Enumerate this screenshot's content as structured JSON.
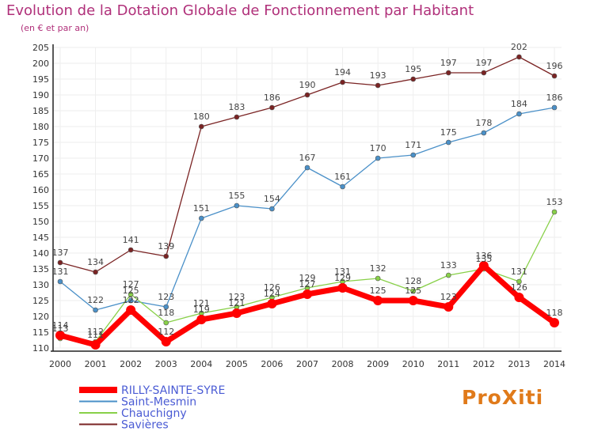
{
  "title": "Evolution de la Dotation Globale de Fonctionnement par Habitant",
  "subtitle": "(en € et par an)",
  "logo_text": "ProXiti",
  "colors": {
    "title": "#b0307a",
    "axis": "#333333",
    "grid": "#eeeeee",
    "legend_text": "#4a5bd4"
  },
  "chart_data": {
    "type": "line",
    "title": "Evolution de la Dotation Globale de Fonctionnement par Habitant",
    "subtitle": "(en € et par an)",
    "xlabel": "",
    "ylabel": "",
    "x": [
      "2000",
      "2001",
      "2002",
      "2003",
      "2004",
      "2005",
      "2006",
      "2007",
      "2008",
      "2009",
      "2010",
      "2011",
      "2012",
      "2013",
      "2014"
    ],
    "ylim": [
      110,
      205
    ],
    "yticks": [
      110,
      115,
      120,
      125,
      130,
      135,
      140,
      145,
      150,
      155,
      160,
      165,
      170,
      175,
      180,
      185,
      190,
      195,
      200,
      205
    ],
    "grid": true,
    "legend_position": "bottom-left",
    "series": [
      {
        "name": "Savières",
        "color": "#7a2323",
        "values": [
          137,
          134,
          141,
          139,
          180,
          183,
          186,
          190,
          194,
          193,
          195,
          197,
          197,
          202,
          196
        ]
      },
      {
        "name": "Saint-Mesmin",
        "color": "#4a90c8",
        "values": [
          131,
          122,
          125,
          123,
          151,
          155,
          154,
          167,
          161,
          170,
          171,
          175,
          178,
          184,
          186
        ]
      },
      {
        "name": "Chauchigny",
        "color": "#88d048",
        "values": [
          113,
          112,
          127,
          118,
          121,
          123,
          126,
          129,
          131,
          132,
          128,
          133,
          135,
          131,
          153
        ]
      },
      {
        "name": "RILLY-SAINTE-SYRE",
        "color": "#ff0000",
        "values": [
          114,
          111,
          122,
          112,
          119,
          121,
          124,
          127,
          129,
          125,
          125,
          123,
          136,
          126,
          118
        ]
      }
    ],
    "legend_order": [
      "RILLY-SAINTE-SYRE",
      "Saint-Mesmin",
      "Chauchigny",
      "Savières"
    ]
  }
}
